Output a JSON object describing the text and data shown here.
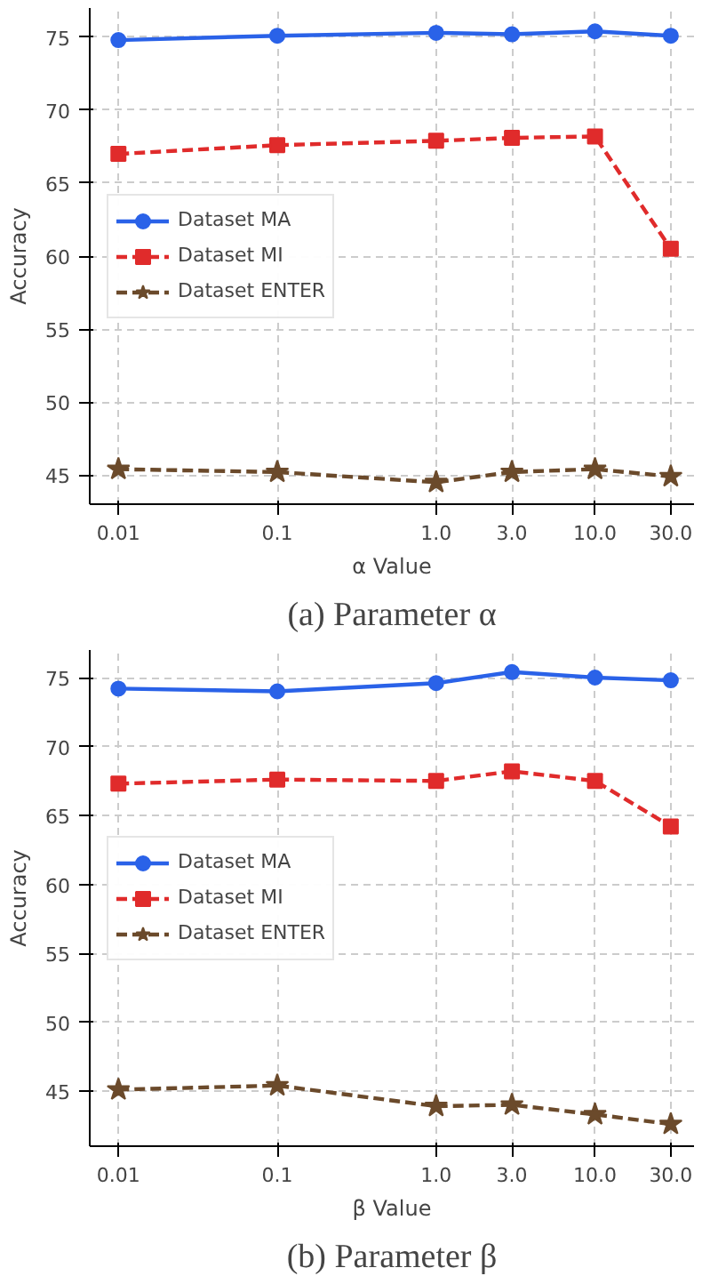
{
  "chart_data": [
    {
      "type": "line",
      "title": "(a) Parameter α",
      "xlabel": "α Value",
      "ylabel": "Accuracy",
      "log": "x",
      "x": [
        0.01,
        0.1,
        1.0,
        3.0,
        10.0,
        30.0
      ],
      "xlim": [
        0.0066,
        42
      ],
      "xticks": [
        {
          "value": 0.01,
          "label": "0.01"
        },
        {
          "value": 0.1,
          "label": "0.1"
        },
        {
          "value": 1.0,
          "label": "1.0"
        },
        {
          "value": 3.0,
          "label": "3.0"
        },
        {
          "value": 10.0,
          "label": "10.0"
        },
        {
          "value": 30.0,
          "label": "30.0"
        }
      ],
      "ylim": [
        43,
        77
      ],
      "yticks": [
        45,
        50,
        55,
        60,
        65,
        70,
        75
      ],
      "grid": true,
      "legend": "left",
      "series": [
        {
          "name": "Dataset MA",
          "color": "#2a62e8",
          "marker": "circle",
          "line_style": "solid",
          "values": [
            74.8,
            75.1,
            75.3,
            75.2,
            75.4,
            75.1
          ]
        },
        {
          "name": "Dataset MI",
          "color": "#e02b2b",
          "marker": "square",
          "line_style": "dashed",
          "values": [
            67.0,
            67.6,
            67.9,
            68.1,
            68.2,
            60.5
          ]
        },
        {
          "name": "Dataset ENTER",
          "color": "#6b4a2b",
          "marker": "star",
          "line_style": "dashed",
          "values": [
            45.4,
            45.2,
            44.5,
            45.2,
            45.4,
            44.9
          ]
        }
      ]
    },
    {
      "type": "line",
      "title": "(b) Parameter β",
      "xlabel": "β Value",
      "ylabel": "Accuracy",
      "log": "x",
      "x": [
        0.01,
        0.1,
        1.0,
        3.0,
        10.0,
        30.0
      ],
      "xlim": [
        0.0066,
        42
      ],
      "xticks": [
        {
          "value": 0.01,
          "label": "0.01"
        },
        {
          "value": 0.1,
          "label": "0.1"
        },
        {
          "value": 1.0,
          "label": "1.0"
        },
        {
          "value": 3.0,
          "label": "3.0"
        },
        {
          "value": 10.0,
          "label": "10.0"
        },
        {
          "value": 30.0,
          "label": "30.0"
        }
      ],
      "ylim": [
        41,
        77
      ],
      "yticks": [
        45,
        50,
        55,
        60,
        65,
        70,
        75
      ],
      "grid": true,
      "legend": "left",
      "series": [
        {
          "name": "Dataset MA",
          "color": "#2a62e8",
          "marker": "circle",
          "line_style": "solid",
          "values": [
            74.2,
            74.0,
            74.6,
            75.4,
            75.0,
            74.8
          ]
        },
        {
          "name": "Dataset MI",
          "color": "#e02b2b",
          "marker": "square",
          "line_style": "dashed",
          "values": [
            67.3,
            67.6,
            67.5,
            68.2,
            67.5,
            64.2
          ]
        },
        {
          "name": "Dataset ENTER",
          "color": "#6b4a2b",
          "marker": "star",
          "line_style": "dashed",
          "values": [
            45.1,
            45.4,
            43.9,
            44.0,
            43.3,
            42.6
          ]
        }
      ]
    }
  ]
}
